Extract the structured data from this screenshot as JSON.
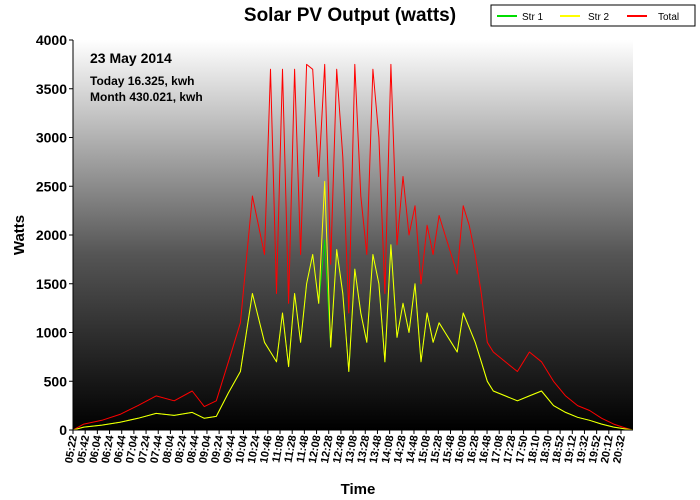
{
  "chart_data": {
    "type": "line",
    "title": "Solar PV Output (watts)",
    "xlabel": "Time",
    "ylabel": "Watts",
    "ylim": [
      0,
      4000
    ],
    "yticks": [
      "0",
      "500",
      "1000",
      "1500",
      "2000",
      "2500",
      "3000",
      "3500",
      "4000"
    ],
    "xtick_labels": [
      "05:22",
      "05:42",
      "06:04",
      "06:24",
      "06:44",
      "07:04",
      "07:24",
      "07:44",
      "08:04",
      "08:24",
      "08:44",
      "09:04",
      "09:24",
      "09:44",
      "10:04",
      "10:24",
      "10:46",
      "11:08",
      "11:28",
      "11:48",
      "12:08",
      "12:28",
      "12:48",
      "13:08",
      "13:28",
      "13:48",
      "14:08",
      "14:28",
      "14:48",
      "15:08",
      "15:28",
      "15:48",
      "16:08",
      "16:28",
      "16:48",
      "17:08",
      "17:28",
      "17:50",
      "18:10",
      "18:30",
      "18:52",
      "19:12",
      "19:32",
      "19:52",
      "20:12",
      "20:32"
    ],
    "x_minutes_range": [
      322,
      1252
    ],
    "legend_placement": "top-right",
    "grid": false,
    "annotations": {
      "date": "23 May 2014",
      "today": "Today 16.325, kwh",
      "month": "Month 430.021, kwh"
    },
    "series": [
      {
        "name": "Str 1",
        "color": "#00dd00",
        "x": [
          322,
          340,
          370,
          400,
          430,
          460,
          490,
          520,
          540,
          560,
          580,
          600,
          620,
          640,
          650,
          660,
          670,
          680,
          690,
          700,
          710,
          720,
          730,
          740,
          750,
          760,
          770,
          780,
          790,
          800,
          810,
          820,
          830,
          840,
          850,
          860,
          870,
          880,
          890,
          900,
          910,
          920,
          930,
          940,
          950,
          960,
          970,
          980,
          990,
          1000,
          1010,
          1020,
          1040,
          1060,
          1080,
          1100,
          1120,
          1140,
          1160,
          1180,
          1200,
          1220,
          1240,
          1252
        ],
        "values": [
          0,
          30,
          50,
          80,
          120,
          170,
          150,
          180,
          120,
          140,
          380,
          600,
          1400,
          900,
          800,
          700,
          1200,
          650,
          1400,
          900,
          1500,
          1800,
          1300,
          1950,
          850,
          1850,
          1400,
          600,
          1650,
          1200,
          900,
          1800,
          1500,
          700,
          1900,
          950,
          1300,
          1000,
          1500,
          700,
          1200,
          900,
          1100,
          1000,
          900,
          800,
          1200,
          1050,
          900,
          700,
          500,
          400,
          350,
          300,
          350,
          400,
          250,
          180,
          130,
          100,
          60,
          30,
          10,
          0
        ]
      },
      {
        "name": "Str 2",
        "color": "#ffff00",
        "x": [
          322,
          340,
          370,
          400,
          430,
          460,
          490,
          520,
          540,
          560,
          580,
          600,
          620,
          640,
          650,
          660,
          670,
          680,
          690,
          700,
          710,
          720,
          730,
          740,
          750,
          760,
          770,
          780,
          790,
          800,
          810,
          820,
          830,
          840,
          850,
          860,
          870,
          880,
          890,
          900,
          910,
          920,
          930,
          940,
          950,
          960,
          970,
          980,
          990,
          1000,
          1010,
          1020,
          1040,
          1060,
          1080,
          1100,
          1120,
          1140,
          1160,
          1180,
          1200,
          1220,
          1240,
          1252
        ],
        "values": [
          0,
          30,
          50,
          80,
          120,
          170,
          150,
          180,
          120,
          140,
          380,
          600,
          1400,
          900,
          800,
          700,
          1200,
          650,
          1400,
          900,
          1500,
          1800,
          1300,
          2550,
          850,
          1850,
          1400,
          600,
          1650,
          1200,
          900,
          1800,
          1500,
          700,
          1900,
          950,
          1300,
          1000,
          1500,
          700,
          1200,
          900,
          1100,
          1000,
          900,
          800,
          1200,
          1050,
          900,
          700,
          500,
          400,
          350,
          300,
          350,
          400,
          250,
          180,
          130,
          100,
          60,
          30,
          10,
          0
        ]
      },
      {
        "name": "Total",
        "color": "#ff0000",
        "x": [
          322,
          340,
          370,
          400,
          430,
          460,
          490,
          520,
          540,
          560,
          580,
          600,
          620,
          640,
          650,
          660,
          670,
          680,
          690,
          700,
          710,
          720,
          730,
          740,
          750,
          760,
          770,
          780,
          790,
          800,
          810,
          820,
          830,
          840,
          850,
          860,
          870,
          880,
          890,
          900,
          910,
          920,
          930,
          940,
          950,
          960,
          970,
          980,
          990,
          1000,
          1010,
          1020,
          1040,
          1060,
          1080,
          1100,
          1120,
          1140,
          1160,
          1180,
          1200,
          1220,
          1240,
          1252
        ],
        "values": [
          0,
          60,
          100,
          160,
          250,
          350,
          300,
          400,
          240,
          300,
          700,
          1100,
          2400,
          1800,
          3700,
          1400,
          3700,
          1300,
          3700,
          1800,
          3750,
          3700,
          2600,
          3750,
          1700,
          3700,
          2800,
          1200,
          3750,
          2400,
          1800,
          3700,
          3000,
          1400,
          3750,
          1900,
          2600,
          2000,
          2300,
          1500,
          2100,
          1800,
          2200,
          2000,
          1800,
          1600,
          2300,
          2100,
          1800,
          1400,
          900,
          800,
          700,
          600,
          800,
          700,
          500,
          350,
          250,
          200,
          120,
          60,
          20,
          0
        ]
      }
    ]
  }
}
